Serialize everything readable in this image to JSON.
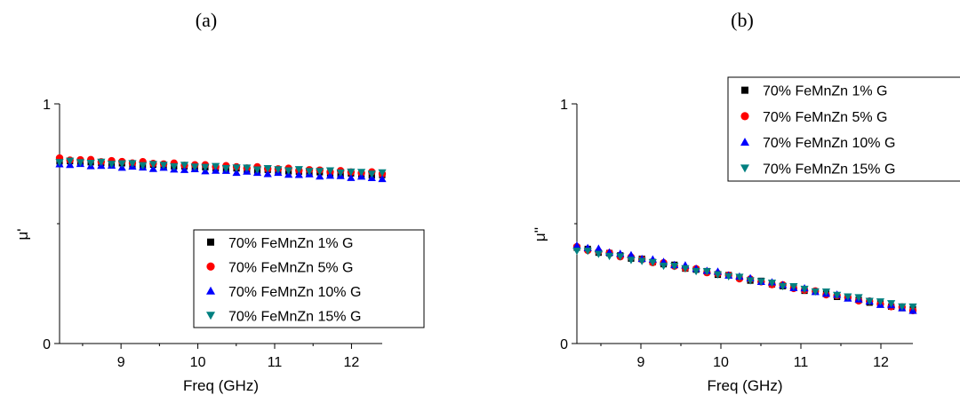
{
  "panels": [
    {
      "panel_label": "(a)",
      "xlabel": "Freq (GHz)",
      "ylabel": "μ'",
      "x_ticks": [
        "9",
        "10",
        "11",
        "12"
      ],
      "y_ticks": [
        "0",
        "1"
      ],
      "legend_position": "bottom-right",
      "legend_entries": [
        "70% FeMnZn 1% G",
        "70% FeMnZn 5% G",
        "70% FeMnZn 10% G",
        "70% FeMnZn 15% G"
      ]
    },
    {
      "panel_label": "(b)",
      "xlabel": "Freq (GHz)",
      "ylabel": "μ''",
      "x_ticks": [
        "9",
        "10",
        "11",
        "12"
      ],
      "y_ticks": [
        "0",
        "1"
      ],
      "legend_position": "top-right",
      "legend_entries": [
        "70% FeMnZn 1% G",
        "70% FeMnZn 5% G",
        "70% FeMnZn 10% G",
        "70% FeMnZn 15% G"
      ]
    }
  ],
  "chart_data": [
    {
      "type": "scatter",
      "xlabel": "Freq (GHz)",
      "ylabel": "μ'",
      "xlim": [
        8.2,
        12.4
      ],
      "ylim": [
        0,
        1
      ],
      "x_tick_values": [
        9,
        10,
        11,
        12
      ],
      "y_tick_values": [
        0,
        1
      ],
      "grid": false,
      "legend": "bottom-right",
      "series": [
        {
          "name": "70% FeMnZn 1% G",
          "marker": "square",
          "color": "#000000",
          "x_start": 8.2,
          "x_end": 12.4,
          "y_start": 0.76,
          "y_end": 0.7
        },
        {
          "name": "70% FeMnZn 5% G",
          "marker": "circle",
          "color": "#ff0000",
          "x_start": 8.2,
          "x_end": 12.4,
          "y_start": 0.77,
          "y_end": 0.71
        },
        {
          "name": "70% FeMnZn 10% G",
          "marker": "triangle-up",
          "color": "#0000ff",
          "x_start": 8.2,
          "x_end": 12.4,
          "y_start": 0.75,
          "y_end": 0.69
        },
        {
          "name": "70% FeMnZn 15% G",
          "marker": "triangle-down",
          "color": "#008080",
          "x_start": 8.2,
          "x_end": 12.4,
          "y_start": 0.76,
          "y_end": 0.71
        }
      ]
    },
    {
      "type": "scatter",
      "xlabel": "Freq (GHz)",
      "ylabel": "μ''",
      "xlim": [
        8.2,
        12.4
      ],
      "ylim": [
        0,
        1
      ],
      "x_tick_values": [
        9,
        10,
        11,
        12
      ],
      "y_tick_values": [
        0,
        1
      ],
      "grid": false,
      "legend": "top-right",
      "series": [
        {
          "name": "70% FeMnZn 1% G",
          "marker": "square",
          "color": "#000000",
          "x_start": 8.2,
          "x_end": 12.4,
          "y_start": 0.4,
          "y_end": 0.14
        },
        {
          "name": "70% FeMnZn 5% G",
          "marker": "circle",
          "color": "#ff0000",
          "x_start": 8.2,
          "x_end": 12.4,
          "y_start": 0.4,
          "y_end": 0.14
        },
        {
          "name": "70% FeMnZn 10% G",
          "marker": "triangle-up",
          "color": "#0000ff",
          "x_start": 8.2,
          "x_end": 12.4,
          "y_start": 0.41,
          "y_end": 0.14
        },
        {
          "name": "70% FeMnZn 15% G",
          "marker": "triangle-down",
          "color": "#008080",
          "x_start": 8.2,
          "x_end": 12.4,
          "y_start": 0.39,
          "y_end": 0.15
        }
      ]
    }
  ]
}
